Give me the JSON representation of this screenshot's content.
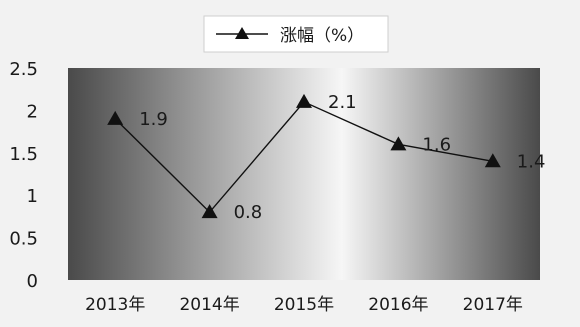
{
  "chart_data": {
    "type": "line",
    "title": "",
    "xlabel": "",
    "ylabel": "",
    "categories": [
      "2013年",
      "2014年",
      "2015年",
      "2016年",
      "2017年"
    ],
    "series": [
      {
        "name": "涨幅（%）",
        "values": [
          1.9,
          0.8,
          2.1,
          1.6,
          1.4
        ]
      }
    ],
    "data_labels": [
      "1.9",
      "0.8",
      "2.1",
      "1.6",
      "1.4"
    ],
    "y_ticks": [
      "0",
      "0.5",
      "1",
      "1.5",
      "2",
      "2.5"
    ],
    "ylim": [
      0,
      2.5
    ],
    "grid": false,
    "legend_position": "top",
    "marker": "triangle",
    "colors": {
      "line": "#111111",
      "plot_dark": "#4a4a4a",
      "plot_light": "#f6f6f6"
    }
  }
}
